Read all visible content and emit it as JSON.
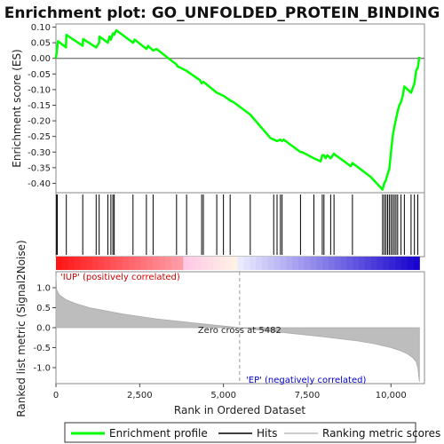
{
  "chart_data": {
    "type": "line",
    "title": "Enrichment plot: GO_UNFOLDED_PROTEIN_BINDING",
    "top_panel": {
      "ylabel": "Enrichment score (ES)",
      "ylim": [
        -0.43,
        0.11
      ],
      "yticks": [
        "0.10",
        "0.05",
        "0.00",
        "-0.05",
        "-0.10",
        "-0.15",
        "-0.20",
        "-0.25",
        "-0.30",
        "-0.35",
        "-0.40"
      ],
      "ytick_values": [
        0.1,
        0.05,
        0.0,
        -0.05,
        -0.1,
        -0.15,
        -0.2,
        -0.25,
        -0.3,
        -0.35,
        -0.4
      ],
      "series": [
        {
          "name": "Enrichment profile",
          "color": "#00ff00",
          "x": [
            0,
            60,
            300,
            310,
            800,
            810,
            1200,
            1290,
            1300,
            1550,
            1600,
            1640,
            1700,
            1740,
            1800,
            2300,
            2350,
            2700,
            2750,
            2900,
            3000,
            3600,
            3620,
            3900,
            4300,
            4350,
            4400,
            4800,
            5000,
            5200,
            5300,
            5800,
            6400,
            6500,
            6600,
            6700,
            6750,
            6800,
            7300,
            7350,
            7700,
            7900,
            7950,
            8000,
            8050,
            8100,
            8200,
            8300,
            8350,
            8800,
            8850,
            9400,
            9750,
            9800,
            9850,
            9900,
            9950,
            10000,
            10050,
            10100,
            10150,
            10200,
            10250,
            10300,
            10350,
            10400,
            10600,
            10700,
            10750,
            10800,
            10850
          ],
          "y": [
            0.0,
            0.055,
            0.035,
            0.075,
            0.04,
            0.062,
            0.035,
            0.05,
            0.07,
            0.05,
            0.07,
            0.06,
            0.08,
            0.075,
            0.09,
            0.05,
            0.06,
            0.03,
            0.04,
            0.025,
            0.03,
            -0.02,
            -0.025,
            -0.04,
            -0.07,
            -0.08,
            -0.075,
            -0.11,
            -0.12,
            -0.135,
            -0.14,
            -0.18,
            -0.255,
            -0.26,
            -0.265,
            -0.26,
            -0.265,
            -0.26,
            -0.3,
            -0.3,
            -0.32,
            -0.33,
            -0.31,
            -0.31,
            -0.32,
            -0.31,
            -0.32,
            -0.305,
            -0.31,
            -0.345,
            -0.335,
            -0.38,
            -0.42,
            -0.4,
            -0.39,
            -0.37,
            -0.355,
            -0.3,
            -0.25,
            -0.22,
            -0.195,
            -0.17,
            -0.15,
            -0.14,
            -0.12,
            -0.09,
            -0.11,
            -0.08,
            -0.04,
            -0.03,
            0.005
          ]
        }
      ]
    },
    "hits": [
      20,
      40,
      310,
      800,
      1200,
      1290,
      1550,
      1640,
      1700,
      1740,
      2300,
      2700,
      2900,
      3600,
      3900,
      4350,
      4400,
      4800,
      5000,
      5200,
      5800,
      6500,
      6600,
      6700,
      6750,
      7300,
      7700,
      7950,
      8000,
      8200,
      8300,
      8850,
      9750,
      9800,
      9850,
      9900,
      9950,
      10000,
      10050,
      10100,
      10150,
      10200,
      10300,
      10400,
      10600,
      10700,
      10800
    ],
    "bottom_panel": {
      "ylabel": "Ranked list metric (Signal2Noise)",
      "xlabel": "Rank in Ordered Dataset",
      "ylim": [
        -1.4,
        1.4
      ],
      "yticks": [
        "1.0",
        "0.5",
        "0.0",
        "-0.5",
        "-1.0"
      ],
      "ytick_values": [
        1.0,
        0.5,
        0.0,
        -0.5,
        -1.0
      ],
      "xticks": [
        "0",
        "2,500",
        "5,000",
        "7,500",
        "10,000"
      ],
      "xtick_values": [
        0,
        2500,
        5000,
        7500,
        10000
      ],
      "xlim": [
        0,
        11000
      ],
      "n_genes": 10850,
      "metric_curve": {
        "x": [
          0,
          20,
          100,
          300,
          600,
          1000,
          2000,
          3000,
          4000,
          5000,
          5482,
          6000,
          7000,
          8000,
          9000,
          9500,
          10000,
          10300,
          10500,
          10650,
          10750,
          10800,
          10850
        ],
        "y": [
          1.3,
          0.95,
          0.82,
          0.7,
          0.6,
          0.5,
          0.34,
          0.22,
          0.13,
          0.04,
          0.0,
          -0.05,
          -0.14,
          -0.23,
          -0.33,
          -0.4,
          -0.5,
          -0.58,
          -0.66,
          -0.75,
          -0.85,
          -1.0,
          -1.35
        ]
      },
      "zero_cross_label": "Zero cross at 5482",
      "zero_cross": 5482,
      "pos_label": "'IUP' (positively correlated)",
      "neg_label": "'EP' (negatively correlated)"
    },
    "legend": [
      {
        "label": "Enrichment profile",
        "color": "#00ff00"
      },
      {
        "label": "Hits",
        "color": "#000000"
      },
      {
        "label": "Ranking metric scores",
        "color": "#bbbbbb"
      }
    ]
  }
}
